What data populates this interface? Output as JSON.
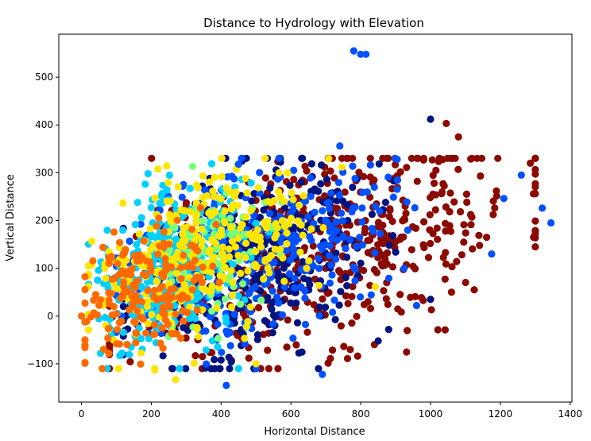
{
  "chart_data": {
    "type": "scatter",
    "title": "Distance to Hydrology with Elevation",
    "xlabel": "Horizontal Distance",
    "ylabel": "Vertical Distance",
    "xlim": [
      -65,
      1405
    ],
    "ylim": [
      -180,
      590
    ],
    "xticks": [
      0,
      200,
      400,
      600,
      800,
      1000,
      1200,
      1400
    ],
    "yticks": [
      -100,
      0,
      100,
      200,
      300,
      400,
      500
    ],
    "grid": false,
    "legend": "none",
    "colormap": "jet",
    "groups": [
      {
        "color": "#8b0a00",
        "seed": 11,
        "count": 520,
        "x_range": [
          80,
          1300
        ],
        "cx": 700,
        "cy": 150,
        "sx": 280,
        "sy": 110,
        "slope": 0.22
      },
      {
        "color": "#00147f",
        "seed": 23,
        "count": 360,
        "x_range": [
          120,
          900
        ],
        "cx": 480,
        "cy": 110,
        "sx": 170,
        "sy": 95,
        "slope": 0.18
      },
      {
        "color": "#0050ff",
        "seed": 37,
        "count": 320,
        "x_range": [
          100,
          1000
        ],
        "cx": 500,
        "cy": 140,
        "sx": 190,
        "sy": 90,
        "slope": 0.18
      },
      {
        "color": "#00d0ff",
        "seed": 41,
        "count": 340,
        "x_range": [
          20,
          650
        ],
        "cx": 250,
        "cy": 100,
        "sx": 110,
        "sy": 80,
        "slope": 0.28
      },
      {
        "color": "#7cff7a",
        "seed": 53,
        "count": 90,
        "x_range": [
          120,
          600
        ],
        "cx": 380,
        "cy": 150,
        "sx": 100,
        "sy": 70,
        "slope": 0.2
      },
      {
        "color": "#ffe600",
        "seed": 67,
        "count": 300,
        "x_range": [
          20,
          900
        ],
        "cx": 330,
        "cy": 120,
        "sx": 150,
        "sy": 80,
        "slope": 0.22
      },
      {
        "color": "#ff6a00",
        "seed": 79,
        "count": 180,
        "x_range": [
          10,
          600
        ],
        "cx": 180,
        "cy": 60,
        "sx": 100,
        "sy": 65,
        "slope": 0.25
      }
    ],
    "points": [
      {
        "x": 0,
        "y": 0,
        "color": "#ff6a00"
      },
      {
        "x": 780,
        "y": 555,
        "color": "#0050ff"
      },
      {
        "x": 800,
        "y": 548,
        "color": "#0050ff"
      },
      {
        "x": 815,
        "y": 548,
        "color": "#0050ff"
      },
      {
        "x": 1000,
        "y": 412,
        "color": "#00147f"
      },
      {
        "x": 1045,
        "y": 403,
        "color": "#8b0a00"
      },
      {
        "x": 1080,
        "y": 375,
        "color": "#8b0a00"
      },
      {
        "x": 740,
        "y": 356,
        "color": "#0050ff"
      },
      {
        "x": 450,
        "y": 318,
        "color": "#0050ff"
      },
      {
        "x": 1260,
        "y": 295,
        "color": "#0050ff"
      },
      {
        "x": 1320,
        "y": 226,
        "color": "#0050ff"
      },
      {
        "x": 1345,
        "y": 195,
        "color": "#0050ff"
      },
      {
        "x": 1295,
        "y": 165,
        "color": "#8b0a00"
      },
      {
        "x": 1175,
        "y": 130,
        "color": "#0050ff"
      },
      {
        "x": 1210,
        "y": 246,
        "color": "#0050ff"
      },
      {
        "x": 415,
        "y": -145,
        "color": "#0050ff"
      },
      {
        "x": 690,
        "y": -122,
        "color": "#0050ff"
      },
      {
        "x": 270,
        "y": -133,
        "color": "#ffe600"
      },
      {
        "x": 450,
        "y": -110,
        "color": "#00d0ff"
      },
      {
        "x": 500,
        "y": -100,
        "color": "#ffe600"
      },
      {
        "x": 850,
        "y": -52,
        "color": "#00147f"
      },
      {
        "x": 880,
        "y": -28,
        "color": "#00147f"
      },
      {
        "x": 960,
        "y": 22,
        "color": "#0050ff"
      },
      {
        "x": 1000,
        "y": 35,
        "color": "#00147f"
      },
      {
        "x": 1060,
        "y": 50,
        "color": "#8b0a00"
      },
      {
        "x": 1125,
        "y": 55,
        "color": "#8b0a00"
      },
      {
        "x": 770,
        "y": -70,
        "color": "#8b0a00"
      },
      {
        "x": 210,
        "y": -113,
        "color": "#ffe600"
      }
    ]
  }
}
